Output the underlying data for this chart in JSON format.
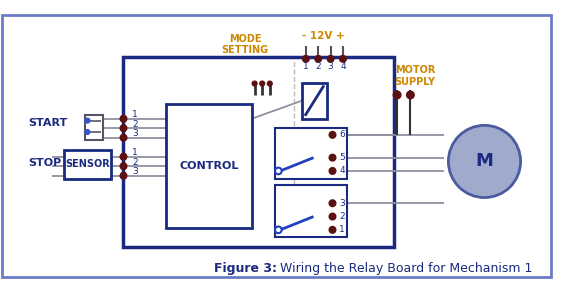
{
  "bg_color": "#FFFFFF",
  "border_color": "#6B7CC4",
  "wire_color": "#9090A0",
  "dot_color": "#5C1010",
  "box_color": "#1A2A80",
  "motor_fill": "#A0AACC",
  "motor_border": "#4B5BA0",
  "switch_color": "#2040C0",
  "label_color_orange": "#CC8800",
  "text_color_blue": "#1A2A80",
  "title_bold_color": "#1A2A80",
  "title_normal_color": "#1A2A80",
  "start_label": "START",
  "stop_label": "STOP",
  "control_label": "CONTROL",
  "sensor_label": "SENSOR",
  "motor_label": "M",
  "mode_setting_label": "MODE\nSETTING",
  "power_label": "- 12V +",
  "motor_supply_label": "MOTOR\nSUPPLY"
}
